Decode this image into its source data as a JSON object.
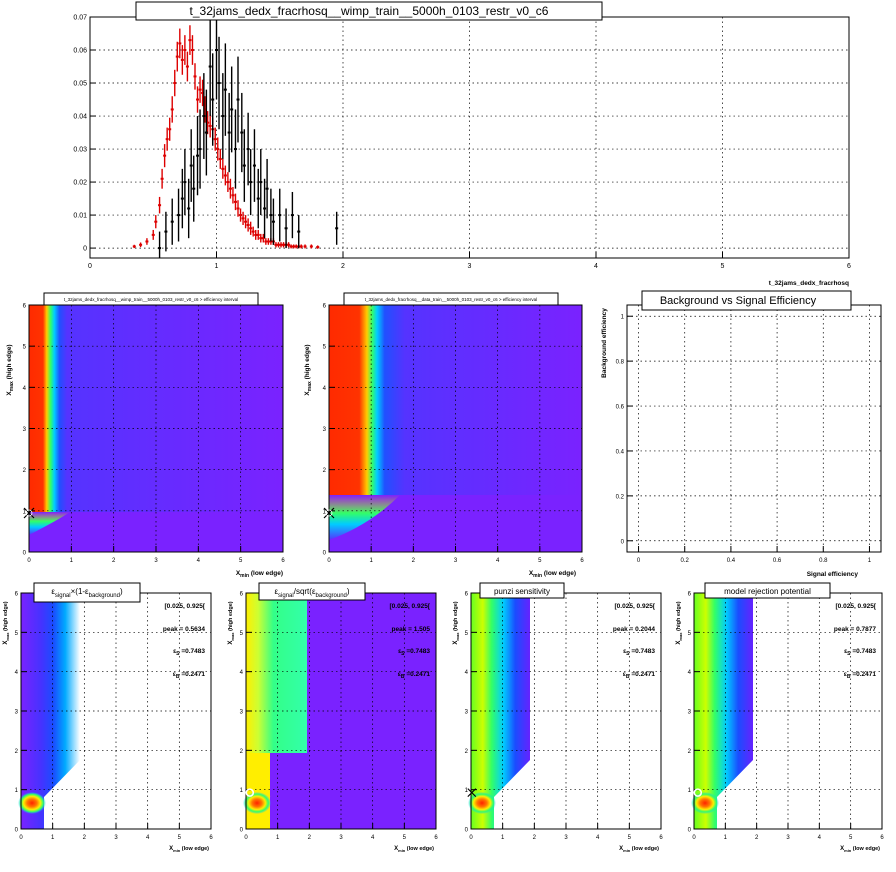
{
  "top": {
    "title": "t_32jams_dedx_fracrhosq__wimp_train__5000h_0103_restr_v0_c6",
    "xlabel": "t_32jams_dedx_fracrhosq",
    "x_ticks": [
      "0",
      "1",
      "2",
      "3",
      "4",
      "5",
      "6"
    ],
    "y_ticks": [
      "0",
      "0.01",
      "0.02",
      "0.03",
      "0.04",
      "0.05",
      "0.06",
      "0.07"
    ]
  },
  "panel_wimp": {
    "title": "t_32jams_dedx_fracrhosq__wimp_train__5000h_0103_restr_v0_c6 > efficiency interval",
    "xlabel_main": "X",
    "xlabel_sub": "min",
    "xlabel_rest": " (low edge)",
    "ylabel_main": "X",
    "ylabel_sub": "max",
    "ylabel_rest": " (high edge)",
    "x_ticks": [
      "0",
      "1",
      "2",
      "3",
      "4",
      "5",
      "6"
    ],
    "y_ticks": [
      "0",
      "1",
      "2",
      "3",
      "4",
      "5",
      "6"
    ]
  },
  "panel_data": {
    "title": "t_32jams_dedx_fracrhosq__data_train__5000h_0103_restr_v0_c6 > efficiency interval",
    "xlabel_main": "X",
    "xlabel_sub": "min",
    "xlabel_rest": " (low edge)",
    "ylabel_main": "X",
    "ylabel_sub": "max",
    "ylabel_rest": " (high edge)",
    "x_ticks": [
      "0",
      "1",
      "2",
      "3",
      "4",
      "5",
      "6"
    ],
    "y_ticks": [
      "0",
      "1",
      "2",
      "3",
      "4",
      "5",
      "6"
    ]
  },
  "panel_roc": {
    "title": "Background vs Signal Efficiency",
    "xlabel": "Signal efficiency",
    "ylabel": "Background efficiency",
    "x_ticks": [
      "0",
      "0.2",
      "0.4",
      "0.6",
      "0.8",
      "1"
    ],
    "y_ticks": [
      "0",
      "0.2",
      "0.4",
      "0.6",
      "0.8",
      "1"
    ]
  },
  "bottom_panels": [
    {
      "title_a": "ε",
      "title_a_sub": "signal",
      "title_b": "×(1-ε",
      "title_b_sub": "background",
      "title_c": ")",
      "range": "[0.025, 0.925[",
      "peak": "peak = 0.5634",
      "es_label": "ε",
      "es_sub": "S",
      "es_val": " =0.7483",
      "eb_label": "ε",
      "eb_sub": "B",
      "eb_val": " =0.2471",
      "xlabel_main": "X",
      "xlabel_sub": "min",
      "xlabel_rest": " (low edge)",
      "ylabel_main": "X",
      "ylabel_sub": "max",
      "ylabel_rest": " (high edge)",
      "x_ticks": [
        "0",
        "1",
        "2",
        "3",
        "4",
        "5",
        "6"
      ],
      "y_ticks": [
        "0",
        "1",
        "2",
        "3",
        "4",
        "5",
        "6"
      ]
    },
    {
      "title_a": "ε",
      "title_a_sub": "signal",
      "title_b": "/sqrt(ε",
      "title_b_sub": "background",
      "title_c": ")",
      "range": "[0.025, 0.925[",
      "peak": "peak = 1.505",
      "es_label": "ε",
      "es_sub": "S",
      "es_val": " =0.7483",
      "eb_label": "ε",
      "eb_sub": "B",
      "eb_val": " =0.2471",
      "xlabel_main": "X",
      "xlabel_sub": "min",
      "xlabel_rest": " (low edge)",
      "ylabel_main": "X",
      "ylabel_sub": "max",
      "ylabel_rest": " (high edge)",
      "x_ticks": [
        "0",
        "1",
        "2",
        "3",
        "4",
        "5",
        "6"
      ],
      "y_ticks": [
        "0",
        "1",
        "2",
        "3",
        "4",
        "5",
        "6"
      ]
    },
    {
      "title_a": "punzi sensitivity",
      "title_a_sub": "",
      "title_b": "",
      "title_b_sub": "",
      "title_c": "",
      "range": "[0.025, 0.925[",
      "peak": "peak = 0.2044",
      "es_label": "ε",
      "es_sub": "S",
      "es_val": " =0.7483",
      "eb_label": "ε",
      "eb_sub": "B",
      "eb_val": " =0.2471",
      "xlabel_main": "X",
      "xlabel_sub": "min",
      "xlabel_rest": " (low edge)",
      "ylabel_main": "X",
      "ylabel_sub": "max",
      "ylabel_rest": " (high edge)",
      "x_ticks": [
        "0",
        "1",
        "2",
        "3",
        "4",
        "5",
        "6"
      ],
      "y_ticks": [
        "0",
        "1",
        "2",
        "3",
        "4",
        "5",
        "6"
      ]
    },
    {
      "title_a": "model rejection potential",
      "title_a_sub": "",
      "title_b": "",
      "title_b_sub": "",
      "title_c": "",
      "range": "[0.025, 0.925[",
      "peak": "peak = 0.7877",
      "es_label": "ε",
      "es_sub": "S",
      "es_val": " =0.7483",
      "eb_label": "ε",
      "eb_sub": "B",
      "eb_val": " =0.2471",
      "xlabel_main": "X",
      "xlabel_sub": "min",
      "xlabel_rest": " (low edge)",
      "ylabel_main": "X",
      "ylabel_sub": "max",
      "ylabel_rest": " (high edge)",
      "x_ticks": [
        "0",
        "1",
        "2",
        "3",
        "4",
        "5",
        "6"
      ],
      "y_ticks": [
        "0",
        "1",
        "2",
        "3",
        "4",
        "5",
        "6"
      ]
    }
  ],
  "colors": {
    "signal": "#dd0000",
    "background": "#000000",
    "palette_high": "#ff2a00",
    "palette_low": "#7a22ff"
  },
  "chart_data": [
    {
      "type": "scatter",
      "title": "t_32jams_dedx_fracrhosq__wimp_train__5000h_0103_restr_v0_c6",
      "xlabel": "t_32jams_dedx_fracrhosq",
      "xlim": [
        0,
        6
      ],
      "ylim": [
        -0.003,
        0.07
      ],
      "series": [
        {
          "color": "#dd0000",
          "x": [
            0.35,
            0.4,
            0.45,
            0.5,
            0.52,
            0.55,
            0.57,
            0.59,
            0.61,
            0.63,
            0.65,
            0.67,
            0.69,
            0.71,
            0.73,
            0.75,
            0.77,
            0.79,
            0.81,
            0.83,
            0.85,
            0.87,
            0.89,
            0.91,
            0.93,
            0.95,
            0.97,
            0.99,
            1.01,
            1.03,
            1.05,
            1.07,
            1.09,
            1.11,
            1.13,
            1.15,
            1.17,
            1.19,
            1.21,
            1.23,
            1.25,
            1.27,
            1.29,
            1.31,
            1.33,
            1.35,
            1.37,
            1.39,
            1.41,
            1.43,
            1.45,
            1.47,
            1.49,
            1.51,
            1.53,
            1.55,
            1.57,
            1.59,
            1.61,
            1.63,
            1.65,
            1.67,
            1.7,
            1.75,
            1.8
          ],
          "y": [
            0.0005,
            0.001,
            0.002,
            0.004,
            0.008,
            0.013,
            0.021,
            0.028,
            0.033,
            0.036,
            0.042,
            0.05,
            0.058,
            0.062,
            0.057,
            0.06,
            0.055,
            0.063,
            0.06,
            0.052,
            0.045,
            0.048,
            0.047,
            0.042,
            0.038,
            0.037,
            0.036,
            0.033,
            0.03,
            0.027,
            0.024,
            0.022,
            0.02,
            0.018,
            0.016,
            0.014,
            0.012,
            0.01,
            0.009,
            0.008,
            0.007,
            0.006,
            0.005,
            0.004,
            0.004,
            0.003,
            0.003,
            0.002,
            0.002,
            0.002,
            0.002,
            0.001,
            0.001,
            0.001,
            0.001,
            0.001,
            0.001,
            0.0005,
            0.0005,
            0.0005,
            0.0005,
            0.0005,
            0.0005,
            0.0005,
            0.0003
          ],
          "err": [
            0.0005,
            0.0007,
            0.001,
            0.0015,
            0.002,
            0.0025,
            0.003,
            0.0035,
            0.0035,
            0.0035,
            0.004,
            0.004,
            0.0045,
            0.0045,
            0.0045,
            0.0045,
            0.0045,
            0.0045,
            0.0045,
            0.004,
            0.004,
            0.004,
            0.004,
            0.004,
            0.0035,
            0.0035,
            0.0035,
            0.0035,
            0.0035,
            0.003,
            0.003,
            0.003,
            0.003,
            0.003,
            0.0025,
            0.0025,
            0.0025,
            0.002,
            0.002,
            0.002,
            0.002,
            0.002,
            0.0015,
            0.0015,
            0.0015,
            0.0013,
            0.0013,
            0.001,
            0.001,
            0.001,
            0.001,
            0.0008,
            0.0008,
            0.0008,
            0.0008,
            0.0008,
            0.0008,
            0.0006,
            0.0006,
            0.0006,
            0.0006,
            0.0006,
            0.0006,
            0.0006,
            0.0005
          ]
        },
        {
          "color": "#000000",
          "x": [
            0.55,
            0.6,
            0.65,
            0.7,
            0.73,
            0.75,
            0.78,
            0.8,
            0.82,
            0.85,
            0.87,
            0.9,
            0.92,
            0.95,
            0.97,
            1.0,
            1.02,
            1.05,
            1.07,
            1.1,
            1.12,
            1.15,
            1.17,
            1.2,
            1.22,
            1.25,
            1.27,
            1.3,
            1.33,
            1.35,
            1.38,
            1.4,
            1.43,
            1.45,
            1.5,
            1.55,
            1.6,
            1.65,
            1.95
          ],
          "y": [
            0.0,
            0.005,
            0.008,
            0.01,
            0.015,
            0.02,
            0.012,
            0.025,
            0.018,
            0.028,
            0.03,
            0.04,
            0.035,
            0.055,
            0.045,
            0.06,
            0.05,
            0.04,
            0.048,
            0.035,
            0.042,
            0.03,
            0.045,
            0.035,
            0.025,
            0.03,
            0.02,
            0.025,
            0.015,
            0.02,
            0.012,
            0.018,
            0.01,
            0.008,
            0.01,
            0.006,
            0.01,
            0.005,
            0.006
          ],
          "err": [
            0.005,
            0.006,
            0.007,
            0.008,
            0.009,
            0.01,
            0.009,
            0.011,
            0.01,
            0.012,
            0.012,
            0.013,
            0.013,
            0.015,
            0.014,
            0.015,
            0.014,
            0.013,
            0.014,
            0.012,
            0.013,
            0.012,
            0.013,
            0.012,
            0.011,
            0.011,
            0.01,
            0.011,
            0.009,
            0.01,
            0.009,
            0.009,
            0.008,
            0.007,
            0.008,
            0.006,
            0.007,
            0.005,
            0.005
          ]
        }
      ]
    },
    {
      "type": "heatmap",
      "title": "t_32jams_dedx_fracrhosq__wimp_train__5000h_0103_restr_v0_c6 > efficiency interval",
      "xlim": [
        0,
        6
      ],
      "ylim": [
        0,
        6
      ],
      "signal_edge": [
        0.5,
        0.9
      ],
      "marker": [
        0.025,
        0.925
      ]
    },
    {
      "type": "heatmap",
      "title": "t_32jams_dedx_fracrhosq__data_train__5000h_0103_restr_v0_c6 > efficiency interval",
      "xlim": [
        0,
        6
      ],
      "ylim": [
        0,
        6
      ],
      "signal_edge": [
        0.9,
        1.2
      ],
      "marker": [
        0.025,
        0.925
      ]
    },
    {
      "type": "line",
      "title": "Background vs Signal Efficiency",
      "xlabel": "Signal efficiency",
      "ylabel": "Background efficiency",
      "xlim": [
        -0.05,
        1.05
      ],
      "ylim": [
        -0.05,
        1.05
      ]
    },
    {
      "type": "heatmap",
      "title": "εsignal×(1-εbackground)",
      "xlim": [
        0,
        6
      ],
      "ylim": [
        0,
        6
      ],
      "peak": 0.5634,
      "best_interval": [
        0.025,
        0.925
      ],
      "eps_s": 0.7483,
      "eps_b": 0.2471
    },
    {
      "type": "heatmap",
      "title": "εsignal/sqrt(εbackground)",
      "xlim": [
        0,
        6
      ],
      "ylim": [
        0,
        6
      ],
      "peak": 1.505,
      "best_interval": [
        0.025,
        0.925
      ],
      "eps_s": 0.7483,
      "eps_b": 0.2471
    },
    {
      "type": "heatmap",
      "title": "punzi sensitivity",
      "xlim": [
        0,
        6
      ],
      "ylim": [
        0,
        6
      ],
      "peak": 0.2044,
      "best_interval": [
        0.025,
        0.925
      ],
      "eps_s": 0.7483,
      "eps_b": 0.2471
    },
    {
      "type": "heatmap",
      "title": "model rejection potential",
      "xlim": [
        0,
        6
      ],
      "ylim": [
        0,
        6
      ],
      "peak": 0.7877,
      "best_interval": [
        0.025,
        0.925
      ],
      "eps_s": 0.7483,
      "eps_b": 0.2471
    }
  ]
}
